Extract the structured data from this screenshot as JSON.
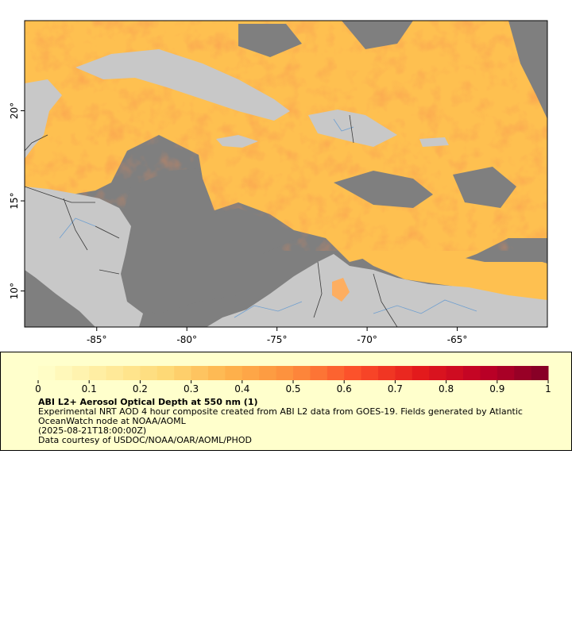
{
  "map": {
    "lon_range": [
      -89.0,
      -60.0
    ],
    "lat_range": [
      8.0,
      25.0
    ],
    "x_ticks": [
      {
        "value": -85,
        "label": "-85°"
      },
      {
        "value": -80,
        "label": "-80°"
      },
      {
        "value": -75,
        "label": "-75°"
      },
      {
        "value": -70,
        "label": "-70°"
      },
      {
        "value": -65,
        "label": "-65°"
      }
    ],
    "y_ticks": [
      {
        "value": 20,
        "label": "20°"
      },
      {
        "value": 15,
        "label": "15°"
      },
      {
        "value": 10,
        "label": "10°"
      }
    ],
    "colors": {
      "ocean_nodata": "#7f7f7f",
      "land": "#c8c8c8",
      "rivers": "#6f9fd0",
      "borders": "#3a3a3a"
    }
  },
  "legend": {
    "ticks": [
      "0",
      "0.1",
      "0.2",
      "0.3",
      "0.4",
      "0.5",
      "0.6",
      "0.7",
      "0.8",
      "0.9",
      "1"
    ],
    "range": [
      0,
      1
    ],
    "colors": [
      "#ffffcc",
      "#ffeda0",
      "#fed976",
      "#feb24c",
      "#fd8d3c",
      "#fc4e2a",
      "#e31a1c",
      "#bd0026",
      "#800026"
    ],
    "title": "ABI L2+ Aerosol Optical Depth at 550 nm (1)",
    "description": "Experimental NRT AOD 4 hour composite created from ABI L2 data from GOES-19. Fields generated by Atlantic OceanWatch node at NOAA/AOML",
    "date": "(2025-08-21T18:00:00Z)",
    "credit": "Data courtesy of USDOC/NOAA/OAR/AOML/PHOD"
  }
}
